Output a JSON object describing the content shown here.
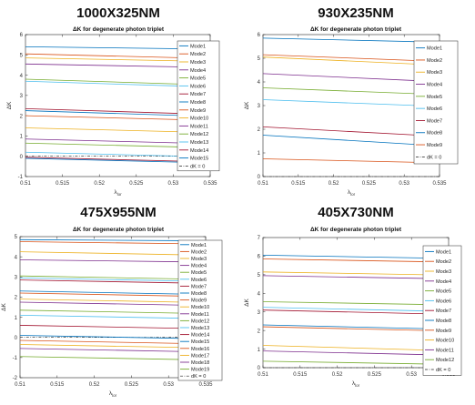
{
  "chart_data": [
    {
      "type": "line",
      "panel_title": "1000X325NM",
      "title": "ΔK for degenerate photon triplet",
      "xlabel": "λ_lor",
      "xlabel_main": "λ",
      "xlabel_sub": "lor",
      "ylabel": "ΔK",
      "xlim": [
        0.51,
        0.535
      ],
      "ylim": [
        -1,
        6
      ],
      "xticks": [
        0.51,
        0.515,
        0.52,
        0.525,
        0.53,
        0.535
      ],
      "yticks": [
        -1,
        0,
        1,
        2,
        3,
        4,
        5,
        6
      ],
      "x": [
        0.51,
        0.532
      ],
      "grid": false,
      "legend_position": "right",
      "series": [
        {
          "name": "Mode1",
          "color": "#0072bd",
          "values": [
            5.4,
            5.3
          ]
        },
        {
          "name": "Mode2",
          "color": "#d95319",
          "values": [
            5.05,
            4.85
          ]
        },
        {
          "name": "Mode3",
          "color": "#edb120",
          "values": [
            4.85,
            4.7
          ]
        },
        {
          "name": "Mode4",
          "color": "#7e2f8e",
          "values": [
            4.55,
            4.4
          ]
        },
        {
          "name": "Mode5",
          "color": "#77ac30",
          "values": [
            3.8,
            3.55
          ]
        },
        {
          "name": "Mode6",
          "color": "#4dbeee",
          "values": [
            3.7,
            3.45
          ]
        },
        {
          "name": "Mode7",
          "color": "#a2142f",
          "values": [
            2.35,
            2.1
          ]
        },
        {
          "name": "Mode8",
          "color": "#0072bd",
          "values": [
            2.25,
            2.0
          ]
        },
        {
          "name": "Mode9",
          "color": "#d95319",
          "values": [
            2.0,
            1.8
          ]
        },
        {
          "name": "Mode10",
          "color": "#edb120",
          "values": [
            1.4,
            1.2
          ]
        },
        {
          "name": "Mode11",
          "color": "#7e2f8e",
          "values": [
            0.85,
            0.65
          ]
        },
        {
          "name": "Mode12",
          "color": "#77ac30",
          "values": [
            0.65,
            0.45
          ]
        },
        {
          "name": "Mode13",
          "color": "#4dbeee",
          "values": [
            0.2,
            0.0
          ]
        },
        {
          "name": "Mode14",
          "color": "#a2142f",
          "values": [
            -0.05,
            -0.25
          ]
        },
        {
          "name": "Mode15",
          "color": "#0072bd",
          "values": [
            -0.1,
            -0.3
          ]
        }
      ],
      "reference_line": {
        "name": "dK = 0",
        "value": 0
      }
    },
    {
      "type": "line",
      "panel_title": "930X235NM",
      "title": "ΔK for degenerate photon triplet",
      "xlabel": "λ_lor",
      "xlabel_main": "λ",
      "xlabel_sub": "lor",
      "ylabel": "ΔK",
      "xlim": [
        0.51,
        0.535
      ],
      "ylim": [
        0,
        6
      ],
      "xticks": [
        0.51,
        0.515,
        0.52,
        0.525,
        0.53,
        0.535
      ],
      "yticks": [
        0,
        1,
        2,
        3,
        4,
        5,
        6
      ],
      "x": [
        0.51,
        0.532
      ],
      "grid": false,
      "legend_position": "right",
      "series": [
        {
          "name": "Mode1",
          "color": "#0072bd",
          "values": [
            5.85,
            5.7
          ]
        },
        {
          "name": "Mode2",
          "color": "#d95319",
          "values": [
            5.15,
            4.9
          ]
        },
        {
          "name": "Mode3",
          "color": "#edb120",
          "values": [
            5.05,
            4.75
          ]
        },
        {
          "name": "Mode4",
          "color": "#7e2f8e",
          "values": [
            4.35,
            4.05
          ]
        },
        {
          "name": "Mode5",
          "color": "#77ac30",
          "values": [
            3.75,
            3.5
          ]
        },
        {
          "name": "Mode6",
          "color": "#4dbeee",
          "values": [
            3.25,
            3.0
          ]
        },
        {
          "name": "Mode7",
          "color": "#a2142f",
          "values": [
            2.1,
            1.75
          ]
        },
        {
          "name": "Mode8",
          "color": "#0072bd",
          "values": [
            1.75,
            1.35
          ]
        },
        {
          "name": "Mode9",
          "color": "#d95319",
          "values": [
            0.75,
            0.6
          ]
        }
      ],
      "reference_line": {
        "name": "dK = 0",
        "value": 0
      }
    },
    {
      "type": "line",
      "panel_title": "475X955NM",
      "title": "ΔK for degenerate photon triplet",
      "xlabel": "λ_lor",
      "xlabel_main": "λ",
      "xlabel_sub": "lor",
      "ylabel": "ΔK",
      "xlim": [
        0.51,
        0.535
      ],
      "ylim": [
        -2,
        5
      ],
      "xticks": [
        0.51,
        0.515,
        0.52,
        0.525,
        0.53,
        0.535
      ],
      "yticks": [
        -2,
        -1,
        0,
        1,
        2,
        3,
        4,
        5
      ],
      "x": [
        0.51,
        0.532
      ],
      "grid": false,
      "legend_position": "right",
      "series": [
        {
          "name": "Mode1",
          "color": "#0072bd",
          "values": [
            4.85,
            4.8
          ]
        },
        {
          "name": "Mode2",
          "color": "#d95319",
          "values": [
            4.75,
            4.65
          ]
        },
        {
          "name": "Mode3",
          "color": "#edb120",
          "values": [
            4.25,
            4.1
          ]
        },
        {
          "name": "Mode4",
          "color": "#7e2f8e",
          "values": [
            3.85,
            3.75
          ]
        },
        {
          "name": "Mode5",
          "color": "#77ac30",
          "values": [
            3.05,
            2.9
          ]
        },
        {
          "name": "Mode6",
          "color": "#4dbeee",
          "values": [
            2.95,
            2.8
          ]
        },
        {
          "name": "Mode7",
          "color": "#a2142f",
          "values": [
            2.85,
            2.7
          ]
        },
        {
          "name": "Mode8",
          "color": "#0072bd",
          "values": [
            2.3,
            2.15
          ]
        },
        {
          "name": "Mode9",
          "color": "#d95319",
          "values": [
            2.2,
            2.05
          ]
        },
        {
          "name": "Mode10",
          "color": "#edb120",
          "values": [
            1.9,
            1.75
          ]
        },
        {
          "name": "Mode11",
          "color": "#7e2f8e",
          "values": [
            1.75,
            1.6
          ]
        },
        {
          "name": "Mode12",
          "color": "#77ac30",
          "values": [
            1.35,
            1.2
          ]
        },
        {
          "name": "Mode13",
          "color": "#4dbeee",
          "values": [
            1.1,
            0.95
          ]
        },
        {
          "name": "Mode14",
          "color": "#a2142f",
          "values": [
            0.6,
            0.45
          ]
        },
        {
          "name": "Mode15",
          "color": "#0072bd",
          "values": [
            0.1,
            -0.05
          ]
        },
        {
          "name": "Mode16",
          "color": "#d95319",
          "values": [
            -0.15,
            -0.3
          ]
        },
        {
          "name": "Mode17",
          "color": "#edb120",
          "values": [
            -0.35,
            -0.5
          ]
        },
        {
          "name": "Mode18",
          "color": "#7e2f8e",
          "values": [
            -0.55,
            -0.7
          ]
        },
        {
          "name": "Mode19",
          "color": "#77ac30",
          "values": [
            -0.95,
            -1.1
          ]
        }
      ],
      "reference_line": {
        "name": "dK = 0",
        "value": 0
      }
    },
    {
      "type": "line",
      "panel_title": "405X730NM",
      "title": "ΔK for degenerate photon triplet",
      "xlabel": "λ_lor",
      "xlabel_main": "λ",
      "xlabel_sub": "lor",
      "ylabel": "ΔK",
      "xlim": [
        0.51,
        0.535
      ],
      "ylim": [
        0,
        7
      ],
      "xticks": [
        0.51,
        0.515,
        0.52,
        0.525,
        0.53,
        0.535
      ],
      "yticks": [
        0,
        1,
        2,
        3,
        4,
        5,
        6,
        7
      ],
      "x": [
        0.51,
        0.532
      ],
      "grid": false,
      "legend_position": "right",
      "series": [
        {
          "name": "Mode1",
          "color": "#0072bd",
          "values": [
            6.05,
            5.9
          ]
        },
        {
          "name": "Mode2",
          "color": "#d95319",
          "values": [
            5.85,
            5.7
          ]
        },
        {
          "name": "Mode3",
          "color": "#edb120",
          "values": [
            5.15,
            5.0
          ]
        },
        {
          "name": "Mode4",
          "color": "#7e2f8e",
          "values": [
            4.95,
            4.8
          ]
        },
        {
          "name": "Mode5",
          "color": "#77ac30",
          "values": [
            3.55,
            3.4
          ]
        },
        {
          "name": "Mode6",
          "color": "#4dbeee",
          "values": [
            3.25,
            3.05
          ]
        },
        {
          "name": "Mode7",
          "color": "#a2142f",
          "values": [
            3.1,
            2.9
          ]
        },
        {
          "name": "Mode8",
          "color": "#0072bd",
          "values": [
            2.3,
            2.1
          ]
        },
        {
          "name": "Mode9",
          "color": "#d95319",
          "values": [
            2.2,
            2.0
          ]
        },
        {
          "name": "Mode10",
          "color": "#edb120",
          "values": [
            1.2,
            0.95
          ]
        },
        {
          "name": "Mode11",
          "color": "#7e2f8e",
          "values": [
            0.9,
            0.7
          ]
        },
        {
          "name": "Mode12",
          "color": "#77ac30",
          "values": [
            0.35,
            0.2
          ]
        }
      ],
      "reference_line": {
        "name": "dK = 0",
        "value": 0
      }
    }
  ]
}
